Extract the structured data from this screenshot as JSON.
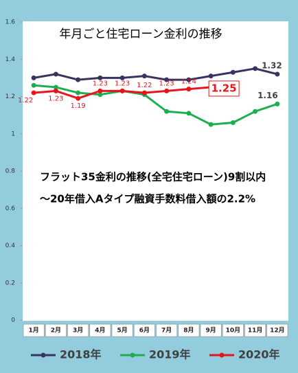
{
  "chart_data": {
    "type": "line",
    "title": "年月ごと住宅ローン金利の推移",
    "annotations": [
      "フラット35金利の推移(全宅住宅ローン)9割以内",
      "～20年借入Aタイプ融資手数料借入額の2.2%"
    ],
    "categories": [
      "1月",
      "2月",
      "3月",
      "4月",
      "5月",
      "6月",
      "7月",
      "8月",
      "9月",
      "10月",
      "11月",
      "12月"
    ],
    "series": [
      {
        "name": "2018年",
        "color": "#3b3261",
        "values": [
          1.3,
          1.32,
          1.29,
          1.3,
          1.3,
          1.31,
          1.29,
          1.29,
          1.31,
          1.33,
          1.35,
          1.32
        ],
        "data_labels": "last"
      },
      {
        "name": "2019年",
        "color": "#1fae4f",
        "values": [
          1.26,
          1.25,
          1.22,
          1.21,
          1.23,
          1.21,
          1.12,
          1.11,
          1.05,
          1.06,
          1.12,
          1.16
        ],
        "data_labels": "last"
      },
      {
        "name": "2020年",
        "color": "#e8141b",
        "values": [
          1.22,
          1.23,
          1.19,
          1.23,
          1.23,
          1.22,
          1.23,
          1.24,
          1.25,
          null,
          null,
          null
        ],
        "data_labels": "all",
        "highlight_index": 8
      }
    ],
    "ylim": [
      0,
      1.6
    ],
    "yticks": [
      0,
      0.2,
      0.4,
      0.6,
      0.8,
      1,
      1.2,
      1.4,
      1.6
    ],
    "grid": false,
    "legend": "bottom"
  }
}
